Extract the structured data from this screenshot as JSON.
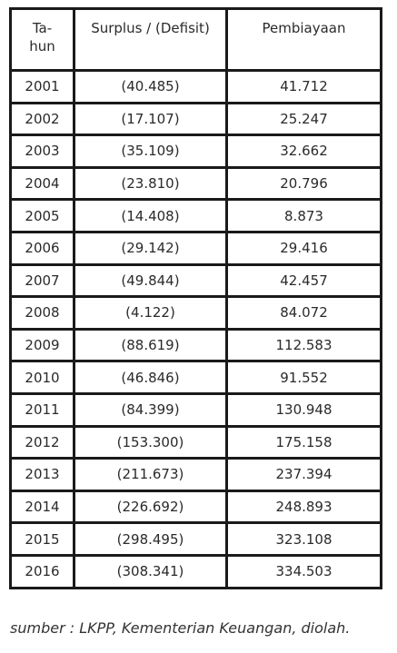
{
  "table": {
    "headers": {
      "year_line1": "Ta-",
      "year_line2": "hun",
      "surplus": "Surplus / (Defisit)",
      "financing": "Pembiayaan"
    },
    "rows": [
      {
        "year": "2001",
        "surplus": "(40.485)",
        "financing": "41.712"
      },
      {
        "year": "2002",
        "surplus": "(17.107)",
        "financing": "25.247"
      },
      {
        "year": "2003",
        "surplus": "(35.109)",
        "financing": "32.662"
      },
      {
        "year": "2004",
        "surplus": "(23.810)",
        "financing": "20.796"
      },
      {
        "year": "2005",
        "surplus": "(14.408)",
        "financing": "8.873"
      },
      {
        "year": "2006",
        "surplus": "(29.142)",
        "financing": "29.416"
      },
      {
        "year": "2007",
        "surplus": "(49.844)",
        "financing": "42.457"
      },
      {
        "year": "2008",
        "surplus": "(4.122)",
        "financing": "84.072"
      },
      {
        "year": "2009",
        "surplus": "(88.619)",
        "financing": "112.583"
      },
      {
        "year": "2010",
        "surplus": "(46.846)",
        "financing": "91.552"
      },
      {
        "year": "2011",
        "surplus": "(84.399)",
        "financing": "130.948"
      },
      {
        "year": "2012",
        "surplus": "(153.300)",
        "financing": "175.158"
      },
      {
        "year": "2013",
        "surplus": "(211.673)",
        "financing": "237.394"
      },
      {
        "year": "2014",
        "surplus": "(226.692)",
        "financing": "248.893"
      },
      {
        "year": "2015",
        "surplus": "(298.495)",
        "financing": "323.108"
      },
      {
        "year": "2016",
        "surplus": "(308.341)",
        "financing": "334.503"
      }
    ]
  },
  "source_note": "sumber : LKPP, Kementerian Keuangan, diolah."
}
